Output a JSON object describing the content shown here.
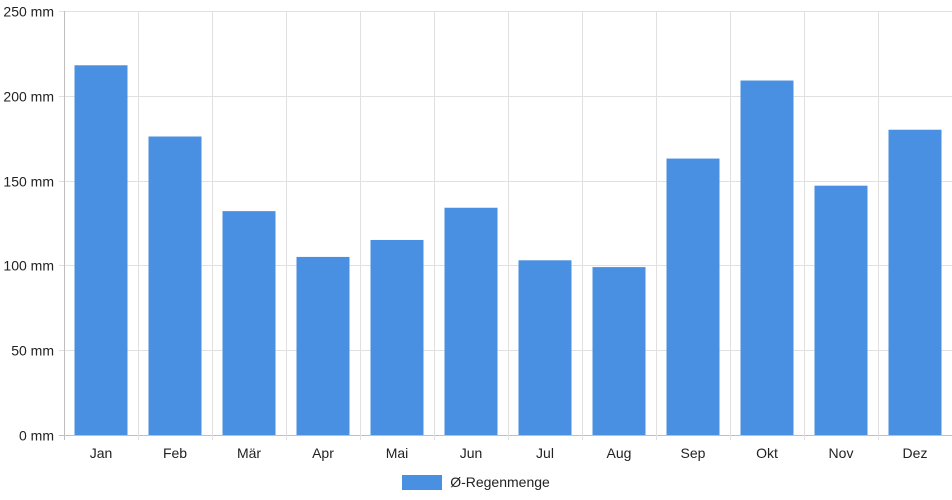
{
  "chart_data": {
    "type": "bar",
    "categories": [
      "Jan",
      "Feb",
      "Mär",
      "Apr",
      "Mai",
      "Jun",
      "Jul",
      "Aug",
      "Sep",
      "Okt",
      "Nov",
      "Dez"
    ],
    "series": [
      {
        "name": "Ø-Regenmenge",
        "values": [
          218,
          176,
          132,
          105,
          115,
          134,
          103,
          99,
          163,
          209,
          147,
          180
        ]
      }
    ],
    "ylim": [
      0,
      250
    ],
    "ytick_values": [
      0,
      50,
      100,
      150,
      200,
      250
    ],
    "ytick_labels": [
      "0 mm",
      "50 mm",
      "100 mm",
      "150 mm",
      "200 mm",
      "250 mm"
    ],
    "grid": true,
    "legend_position": "bottom",
    "colors": {
      "bar": "#4a90e2",
      "grid": "#e0e0e0",
      "axis": "#bfbfbf"
    }
  }
}
